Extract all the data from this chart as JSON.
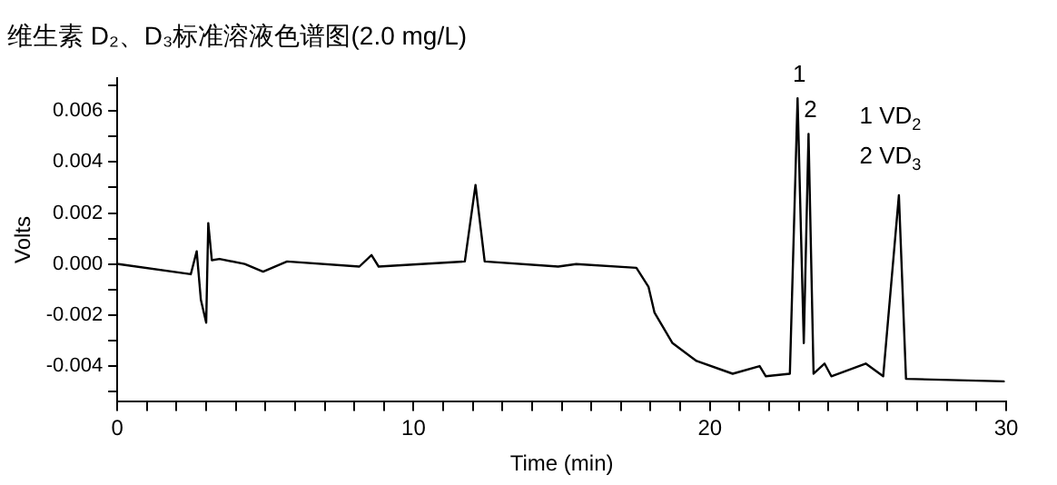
{
  "chart_data": {
    "type": "line",
    "title": "维生素 D₂、D₃标准溶液色谱图(2.0 mg/L)",
    "xlabel": "Time (min)",
    "ylabel": "Volts",
    "x": [
      0.04,
      2.48,
      2.68,
      2.82,
      3.0,
      3.07,
      3.19,
      3.45,
      4.3,
      4.92,
      5.73,
      8.17,
      8.58,
      8.82,
      11.73,
      12.09,
      12.4,
      14.88,
      15.49,
      17.52,
      17.93,
      18.13,
      18.74,
      19.55,
      20.77,
      21.68,
      21.89,
      22.7,
      22.96,
      23.17,
      23.33,
      23.5,
      23.87,
      24.1,
      25.26,
      25.85,
      26.38,
      26.62,
      29.92
    ],
    "series": [
      {
        "color": "#000000",
        "values": [
          0,
          -0.0004,
          0.0005,
          -0.0014,
          -0.0023,
          0.0016,
          0.00015,
          0.0002,
          0,
          -0.0003,
          0.0001,
          -0.0001,
          0.00035,
          -0.0001,
          0.0001,
          0.0031,
          0.0001,
          -0.0001,
          0,
          -0.00015,
          -0.0009,
          -0.0019,
          -0.0031,
          -0.0038,
          -0.0043,
          -0.004,
          -0.0044,
          -0.0043,
          0.0065,
          -0.0031,
          0.0051,
          -0.0043,
          -0.0039,
          -0.0044,
          -0.0039,
          -0.0044,
          0.0027,
          -0.0045,
          -0.0046
        ]
      }
    ],
    "xlim": [
      0,
      30
    ],
    "xticks": [
      0,
      {
        "value": 1,
        "label": null
      },
      {
        "value": 2,
        "label": null
      },
      {
        "value": 3,
        "label": null
      },
      {
        "value": 4,
        "label": null
      },
      {
        "value": 5,
        "label": null
      },
      {
        "value": 6,
        "label": null
      },
      {
        "value": 7,
        "label": null
      },
      {
        "value": 8,
        "label": null
      },
      {
        "value": 9,
        "label": null
      },
      10,
      {
        "value": 11,
        "label": null
      },
      {
        "value": 12,
        "label": null
      },
      {
        "value": 13,
        "label": null
      },
      {
        "value": 14,
        "label": null
      },
      {
        "value": 15,
        "label": null
      },
      {
        "value": 16,
        "label": null
      },
      {
        "value": 17,
        "label": null
      },
      {
        "value": 18,
        "label": null
      },
      {
        "value": 19,
        "label": null
      },
      20,
      {
        "value": 21,
        "label": null
      },
      {
        "value": 22,
        "label": null
      },
      {
        "value": 23,
        "label": null
      },
      {
        "value": 24,
        "label": null
      },
      {
        "value": 25,
        "label": null
      },
      {
        "value": 26,
        "label": null
      },
      {
        "value": 27,
        "label": null
      },
      {
        "value": 28,
        "label": null
      },
      {
        "value": 29,
        "label": null
      },
      30
    ],
    "ylim": [
      -0.0054,
      0.0073
    ],
    "yticks": [
      {
        "value": -0.005,
        "label": null
      },
      {
        "value": -0.004,
        "label": "-0.004"
      },
      {
        "value": -0.003,
        "label": null
      },
      {
        "value": -0.002,
        "label": "-0.002"
      },
      {
        "value": -0.001,
        "label": null
      },
      {
        "value": 0,
        "label": "0.000"
      },
      {
        "value": 0.001,
        "label": null
      },
      {
        "value": 0.002,
        "label": "0.002"
      },
      {
        "value": 0.003,
        "label": null
      },
      {
        "value": 0.004,
        "label": "0.004"
      },
      {
        "value": 0.005,
        "label": null
      },
      {
        "value": 0.006,
        "label": "0.006"
      },
      {
        "value": 0.007,
        "label": null
      }
    ],
    "annotations": [
      {
        "text": "1",
        "x": 22.96,
        "y": 0.0065
      },
      {
        "text": "2",
        "x": 23.33,
        "y": 0.0051
      },
      "1 VD$_{2}$",
      "2 VD$_{3}$"
    ],
    "grid": false,
    "legend": false,
    "marker": "none",
    "line_style": "solid"
  }
}
